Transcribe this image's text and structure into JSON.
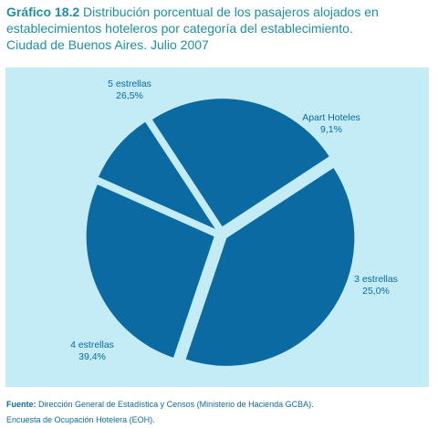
{
  "header": {
    "title_lead": "Gráfico 18.2",
    "title_line1": "Distribución porcentual de los pasajeros alojados en",
    "title_line2": "establecimientos hoteleros por categoría del establecimiento.",
    "title_line3": "Ciudad de Buenos Aires. Julio 2007"
  },
  "footer": {
    "source_label": "Fuente:",
    "source_text": "Dirección General de Estadística y Censos (Ministerio de Hacienda GCBA).",
    "source_line2": "Encuesta de Ocupación Hotelera (EOH)."
  },
  "colors": {
    "slice": "#0a6aa1",
    "panel": "#c3ecf7",
    "title": "#1e8fa3"
  },
  "chart_data": {
    "type": "pie",
    "title": "Distribución porcentual de los pasajeros alojados en establecimientos hoteleros por categoría del establecimiento. Ciudad de Buenos Aires. Julio 2007",
    "categories": [
      "Apart Hoteles",
      "3 estrellas",
      "4 estrellas",
      "5 estrellas"
    ],
    "values": [
      9.1,
      25.0,
      39.4,
      26.5
    ],
    "value_labels": [
      "9,1%",
      "25,0%",
      "39,4%",
      "26,5%"
    ],
    "unit": "%"
  }
}
